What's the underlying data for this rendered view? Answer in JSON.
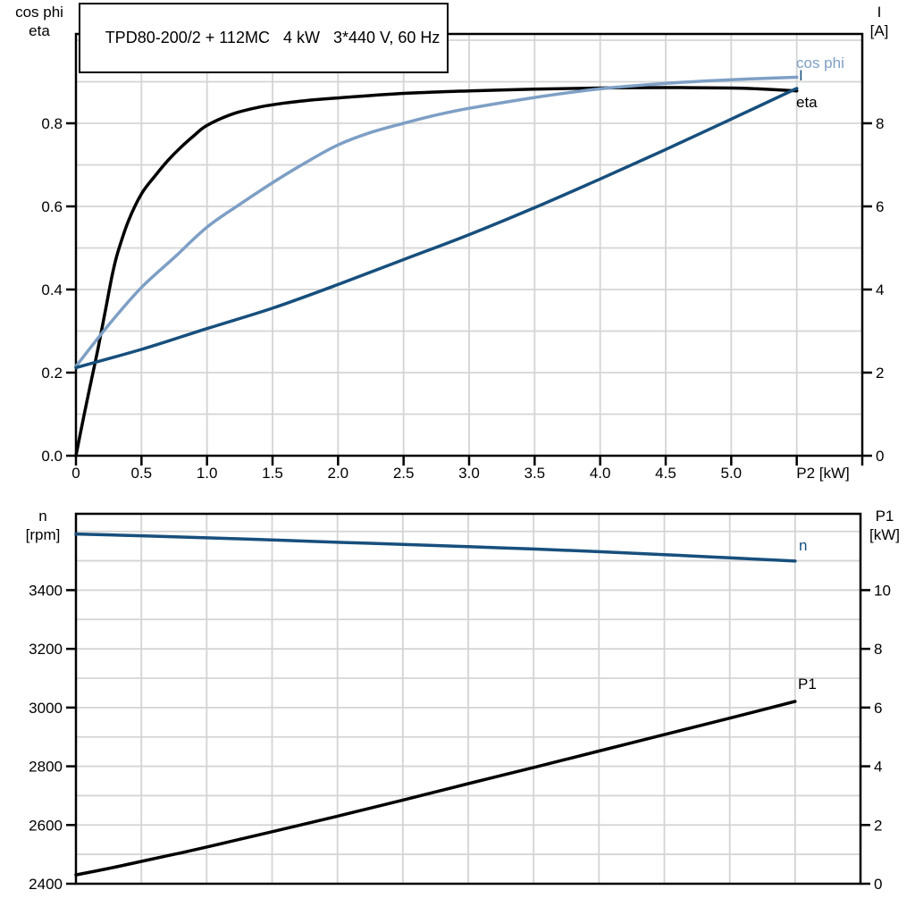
{
  "title": "TPD80-200/2 + 112MC   4 kW   3*440 V, 60 Hz",
  "colors": {
    "background": "#FFFFFF",
    "axis": "#000000",
    "grid": "#D4D4D4",
    "light_blue": "#7E9FC5",
    "dark_blue": "#174F7D",
    "black": "#000000"
  },
  "chart_data": [
    {
      "id": "top",
      "type": "line",
      "title": "TPD80-200/2 + 112MC   4 kW   3*440 V, 60 Hz",
      "grid": true,
      "legend_position": "curve-end-labels",
      "x_axis": {
        "label": "P2 [kW]",
        "label_at": 5.7,
        "range": [
          0,
          6
        ],
        "grid_step": 0.5,
        "tick_values": [
          0,
          0.5,
          1.0,
          1.5,
          2.0,
          2.5,
          3.0,
          3.5,
          4.0,
          4.5,
          5.0
        ],
        "tick_labels": [
          "0",
          "0.5",
          "1.0",
          "1.5",
          "2.0",
          "2.5",
          "3.0",
          "3.5",
          "4.0",
          "4.5",
          "5.0"
        ],
        "extra_tick_values": [
          5.5,
          6.0
        ]
      },
      "y_left": {
        "title_lines": [
          "cos phi",
          "eta"
        ],
        "range": [
          0,
          1.015
        ],
        "grid_step": 0.1,
        "tick_values": [
          0.0,
          0.2,
          0.4,
          0.6,
          0.8
        ],
        "tick_labels": [
          "0.0",
          "0.2",
          "0.4",
          "0.6",
          "0.8"
        ]
      },
      "y_right": {
        "title_lines": [
          "I",
          "[A]"
        ],
        "range": [
          0,
          10.15
        ],
        "tick_values": [
          0,
          2,
          4,
          6,
          8
        ],
        "tick_labels": [
          "0",
          "2",
          "4",
          "6",
          "8"
        ]
      },
      "series": [
        {
          "name": "eta",
          "axis": "left",
          "color": "#000000",
          "points": [
            [
              0,
              0
            ],
            [
              0.06,
              0.095
            ],
            [
              0.11,
              0.17
            ],
            [
              0.17,
              0.26
            ],
            [
              0.225,
              0.35
            ],
            [
              0.28,
              0.44
            ],
            [
              0.32,
              0.49
            ],
            [
              0.4,
              0.565
            ],
            [
              0.5,
              0.63
            ],
            [
              0.6,
              0.672
            ],
            [
              0.7,
              0.71
            ],
            [
              0.8,
              0.742
            ],
            [
              0.9,
              0.77
            ],
            [
              1.0,
              0.795
            ],
            [
              1.2,
              0.823
            ],
            [
              1.4,
              0.839
            ],
            [
              1.6,
              0.849
            ],
            [
              1.8,
              0.856
            ],
            [
              2.0,
              0.861
            ],
            [
              2.5,
              0.872
            ],
            [
              3.0,
              0.878
            ],
            [
              3.5,
              0.882
            ],
            [
              4.0,
              0.885
            ],
            [
              4.5,
              0.886
            ],
            [
              5.0,
              0.885
            ],
            [
              5.2,
              0.883
            ],
            [
              5.5,
              0.878
            ]
          ]
        },
        {
          "name": "cos phi",
          "axis": "left",
          "color": "#7E9FC5",
          "points": [
            [
              0,
              0.215
            ],
            [
              0.25,
              0.315
            ],
            [
              0.5,
              0.405
            ],
            [
              0.75,
              0.477
            ],
            [
              1.0,
              0.55
            ],
            [
              1.25,
              0.605
            ],
            [
              1.5,
              0.657
            ],
            [
              1.75,
              0.705
            ],
            [
              2.0,
              0.748
            ],
            [
              2.25,
              0.778
            ],
            [
              2.5,
              0.8
            ],
            [
              2.75,
              0.82
            ],
            [
              3.0,
              0.836
            ],
            [
              3.5,
              0.862
            ],
            [
              4.0,
              0.883
            ],
            [
              4.5,
              0.896
            ],
            [
              5.0,
              0.905
            ],
            [
              5.5,
              0.911
            ]
          ]
        },
        {
          "name": "I",
          "axis": "right",
          "color": "#174F7D",
          "points": [
            [
              0,
              2.12
            ],
            [
              0.5,
              2.56
            ],
            [
              1.0,
              3.06
            ],
            [
              1.5,
              3.55
            ],
            [
              2.0,
              4.12
            ],
            [
              2.5,
              4.72
            ],
            [
              3.0,
              5.32
            ],
            [
              3.5,
              5.97
            ],
            [
              4.0,
              6.66
            ],
            [
              4.5,
              7.37
            ],
            [
              5.0,
              8.1
            ],
            [
              5.5,
              8.84
            ]
          ]
        }
      ]
    },
    {
      "id": "bottom",
      "type": "line",
      "grid": true,
      "legend_position": "curve-end-labels",
      "x_axis": {
        "label": "",
        "range": [
          0,
          6
        ],
        "grid_step": 0.5,
        "tick_values": [],
        "tick_labels": [],
        "extra_tick_values": []
      },
      "y_left": {
        "title_lines": [
          "n",
          "[rpm]"
        ],
        "range": [
          2400,
          3660
        ],
        "tick_values": [
          2400,
          2600,
          2800,
          3000,
          3200,
          3400
        ],
        "tick_labels": [
          "2400",
          "2600",
          "2800",
          "3000",
          "3200",
          "3400"
        ]
      },
      "y_right": {
        "title_lines": [
          "P1",
          "[kW]"
        ],
        "range": [
          0,
          12.6
        ],
        "grid_step": 1,
        "tick_values": [
          0,
          2,
          4,
          6,
          8,
          10
        ],
        "tick_labels": [
          "0",
          "2",
          "4",
          "6",
          "8",
          "10"
        ]
      },
      "series": [
        {
          "name": "n",
          "axis": "left",
          "color": "#174F7D",
          "points": [
            [
              0,
              3591
            ],
            [
              0.5,
              3585
            ],
            [
              1.0,
              3578
            ],
            [
              1.5,
              3571
            ],
            [
              2.0,
              3563
            ],
            [
              2.5,
              3556
            ],
            [
              3.0,
              3548
            ],
            [
              3.5,
              3540
            ],
            [
              4.0,
              3531
            ],
            [
              4.5,
              3521
            ],
            [
              5.0,
              3510
            ],
            [
              5.5,
              3499
            ]
          ]
        },
        {
          "name": "P1",
          "axis": "right",
          "color": "#000000",
          "points": [
            [
              0,
              0.3
            ],
            [
              0.25,
              0.52
            ],
            [
              0.5,
              0.76
            ],
            [
              0.75,
              1.0
            ],
            [
              1.0,
              1.25
            ],
            [
              1.5,
              1.77
            ],
            [
              2.0,
              2.3
            ],
            [
              2.5,
              2.85
            ],
            [
              3.0,
              3.41
            ],
            [
              3.5,
              3.96
            ],
            [
              4.0,
              4.52
            ],
            [
              4.5,
              5.08
            ],
            [
              5.0,
              5.64
            ],
            [
              5.5,
              6.21
            ]
          ]
        }
      ]
    }
  ]
}
